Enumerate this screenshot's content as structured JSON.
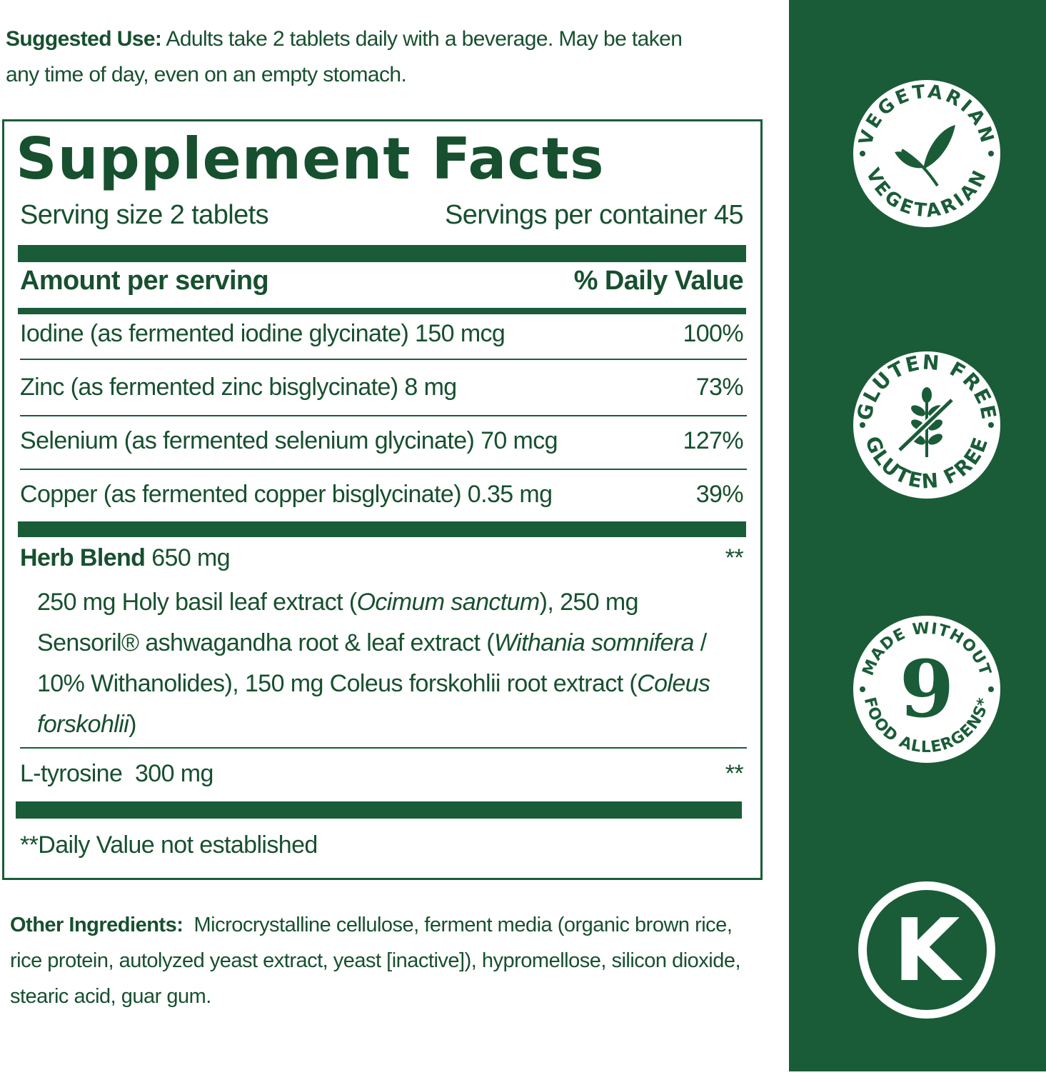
{
  "suggested_use": {
    "label": "Suggested Use:",
    "text": " Adults take 2 tablets daily with a beverage. May be taken any time of day, even on an empty stomach."
  },
  "facts": {
    "title": "Supplement Facts",
    "serving_size": "Serving size 2 tablets",
    "servings_per_container": "Servings per container 45",
    "amount_header": "Amount per serving",
    "dv_header": "% Daily Value",
    "nutrients": [
      {
        "name": "Iodine (as fermented iodine glycinate) 150 mcg",
        "dv": "100%"
      },
      {
        "name": "Zinc (as fermented zinc bisglycinate) 8 mg",
        "dv": "73%"
      },
      {
        "name": "Selenium (as fermented selenium glycinate) 70 mcg",
        "dv": "127%"
      },
      {
        "name": "Copper (as fermented copper bisglycinate) 0.35 mg",
        "dv": "39%"
      }
    ],
    "herb_blend": {
      "label": "Herb Blend",
      "amount": " 650 mg",
      "dv": "**",
      "parts": [
        "250 mg Holy basil leaf extract (",
        "Ocimum sanctum",
        "), 250 mg Sensoril® ashwagandha root & leaf extract (",
        "Withania somnifera",
        "/ 10% Withanolides), 150 mg Coleus forskohlii root extract (",
        "Coleus forskohlii",
        ")"
      ]
    },
    "tyrosine": {
      "name": "L-tyrosine  300 mg",
      "dv": "**"
    },
    "footnote": "**Daily Value not established"
  },
  "other_ingredients": {
    "label": "Other Ingredients:",
    "text": "  Microcrystalline cellulose, ferment media (organic brown rice, rice protein, autolyzed yeast extract, yeast [inactive]), hypromellose, silicon dioxide, stearic acid, guar gum."
  },
  "badges": [
    {
      "icon": "leaf-icon",
      "top": "VEGETARIAN",
      "bottom": "VEGETARIAN"
    },
    {
      "icon": "crossed-wheat-icon",
      "top": "GLUTEN FREE",
      "bottom": "GLUTEN FREE"
    },
    {
      "icon": "nine-icon",
      "top": "MADE WITHOUT",
      "center": "9",
      "bottom": "FOOD ALLERGENS*"
    },
    {
      "icon": "kosher-k-icon",
      "center": "K"
    }
  ],
  "colors": {
    "brand_green": "#1a5c38",
    "text_green": "#17502f"
  }
}
